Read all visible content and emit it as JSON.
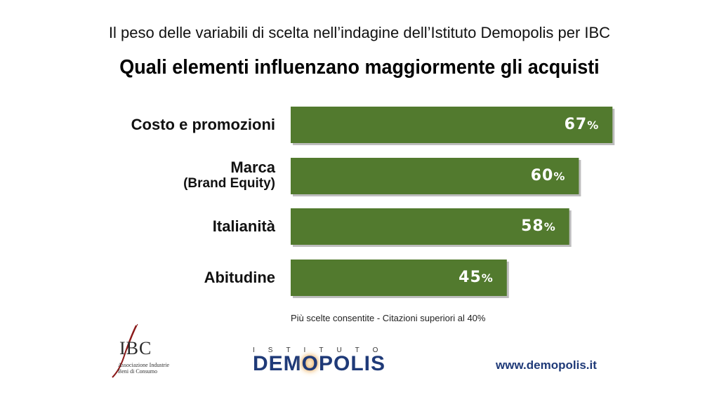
{
  "header": {
    "subtitle": "Il peso delle variabili di scelta nell’indagine dell’Istituto Demopolis per IBC",
    "title": "Quali elementi influenzano maggiormente gli acquisti"
  },
  "chart_data": {
    "type": "bar",
    "orientation": "horizontal",
    "title": "Quali elementi influenzano maggiormente gli acquisti",
    "categories": [
      {
        "line1": "Costo e promozioni",
        "line2": ""
      },
      {
        "line1": "Marca",
        "line2": "(Brand Equity)"
      },
      {
        "line1": "Italianità",
        "line2": ""
      },
      {
        "line1": "Abitudine",
        "line2": ""
      }
    ],
    "values": [
      67,
      60,
      58,
      45
    ],
    "value_number_labels": [
      "67",
      "60",
      "58",
      "45"
    ],
    "value_unit": "%",
    "xlim": [
      0,
      100
    ],
    "grid": false,
    "bar_color": "#527a2e",
    "note": "Più scelte consentite - Citazioni superiori al 40%"
  },
  "logos": {
    "ibc_mark": "IBC",
    "ibc_sub_line1": "Associazione Industrie",
    "ibc_sub_line2": "Beni di Consumo",
    "demopolis_top": "ISTITUTO",
    "demopolis_main_a": "DEM",
    "demopolis_main_o": "O",
    "demopolis_main_b": "POLIS"
  },
  "footer": {
    "url": "www.demopolis.it"
  },
  "colors": {
    "bar": "#527a2e",
    "brand_blue": "#1f3a78"
  }
}
